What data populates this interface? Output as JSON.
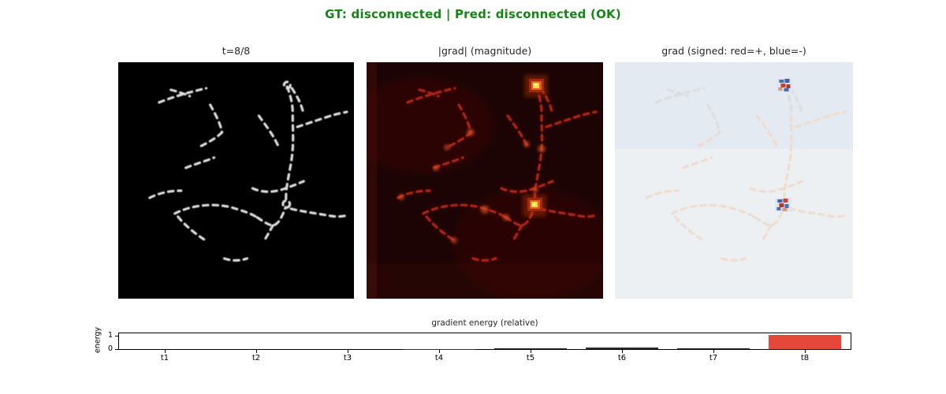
{
  "figure": {
    "title": "GT: disconnected | Pred: disconnected (OK)",
    "title_color": "#158515",
    "background": "#ffffff"
  },
  "panels": {
    "mask": {
      "title": "t=8/8"
    },
    "magnitude": {
      "title": "|grad| (magnitude)"
    },
    "signed": {
      "title": "grad (signed: red=+, blue=-)"
    }
  },
  "colors": {
    "mask_stroke": "#dcdcdc",
    "mask_background": "#000000",
    "magnitude_background": "#1d0404",
    "magnitude_stroke": "#a8261a",
    "hotspot_core": "#ffd84a",
    "hotspot_mid": "#e2601a",
    "signed_background": "#edf0f3",
    "signed_positive": "#c24638",
    "signed_negative": "#4a6fb5"
  },
  "chart_data": {
    "type": "bar",
    "title": "gradient energy (relative)",
    "ylabel": "energy",
    "categories": [
      "t1",
      "t2",
      "t3",
      "t4",
      "t5",
      "t6",
      "t7",
      "t8"
    ],
    "values": [
      0.003,
      0.003,
      0.003,
      0.005,
      0.055,
      0.1,
      0.05,
      1.0
    ],
    "yticks": [
      "0",
      "1"
    ],
    "ylim": [
      0,
      1.2
    ],
    "grid": false,
    "legend_position": "none",
    "bar_default_color": "#2d2d2d",
    "bar_highlight_color": "#e5483b",
    "highlight_index": 7
  }
}
